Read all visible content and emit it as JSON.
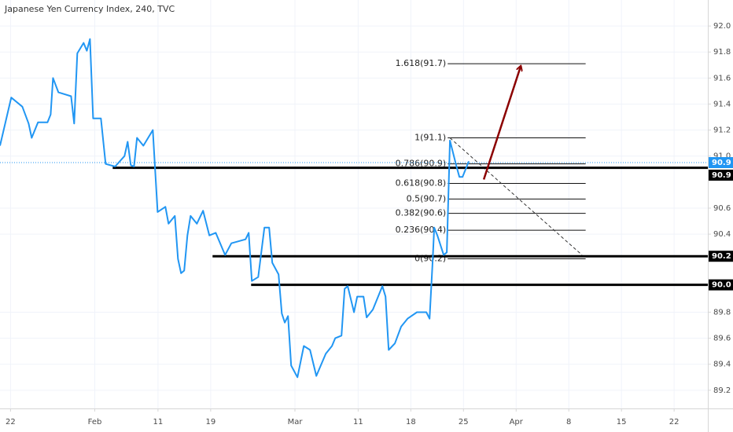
{
  "chart_data": {
    "type": "line",
    "title": "Japanese Yen Currency Index, 240, TVC",
    "x": [
      -1.0,
      0.07,
      1.12,
      1.72,
      2.01,
      2.61,
      3.51,
      3.81,
      4.03,
      4.55,
      5.75,
      6.04,
      6.34,
      6.94,
      7.24,
      7.54,
      7.84,
      8.58,
      9.03,
      9.93,
      10.82,
      11.12,
      11.42,
      11.72,
      12.01,
      12.61,
      13.51,
      13.96,
      14.7,
      15.0,
      15.6,
      15.9,
      16.19,
      16.49,
      16.79,
      17.09,
      17.69,
      18.28,
      18.88,
      19.48,
      20.37,
      20.97,
      22.31,
      22.61,
      22.91,
      23.51,
      24.1,
      24.55,
      24.85,
      25.45,
      25.75,
      26.04,
      26.34,
      26.64,
      27.24,
      27.84,
      28.43,
      29.03,
      29.93,
      30.52,
      30.82,
      31.42,
      31.72,
      32.01,
      32.61,
      32.91,
      33.51,
      33.81,
      34.4,
      35.3,
      35.6,
      35.9,
      36.49,
      37.09,
      37.69,
      38.58,
      39.48,
      39.78,
      40.07,
      40.22,
      40.52,
      41.12,
      41.42,
      41.72,
      42.31,
      42.61,
      42.91,
      43.51
    ],
    "series": [
      {
        "color": "#2196f3",
        "values": [
          91.08,
          91.45,
          91.38,
          91.25,
          91.14,
          91.26,
          91.26,
          91.32,
          91.6,
          91.49,
          91.46,
          91.25,
          91.79,
          91.87,
          91.81,
          91.9,
          91.29,
          91.29,
          90.94,
          90.92,
          91.0,
          91.11,
          90.93,
          90.92,
          91.14,
          91.08,
          91.2,
          90.57,
          90.61,
          90.48,
          90.54,
          90.21,
          90.1,
          90.12,
          90.39,
          90.54,
          90.48,
          90.58,
          90.39,
          90.41,
          90.24,
          90.33,
          90.36,
          90.41,
          90.04,
          90.07,
          90.45,
          90.45,
          90.18,
          90.09,
          89.79,
          89.72,
          89.77,
          89.39,
          89.3,
          89.54,
          89.51,
          89.31,
          89.48,
          89.54,
          89.6,
          89.62,
          89.98,
          90.0,
          89.8,
          89.92,
          89.92,
          89.76,
          89.82,
          90.0,
          89.92,
          89.51,
          89.56,
          89.69,
          89.75,
          89.8,
          89.8,
          89.75,
          90.18,
          90.45,
          90.39,
          90.24,
          90.26,
          91.12,
          90.93,
          90.84,
          90.84,
          90.96
        ]
      }
    ],
    "xlim": [
      -1,
      66.2
    ],
    "xticks": [
      {
        "value": 0,
        "label": "22"
      },
      {
        "value": 8,
        "label": "Feb"
      },
      {
        "value": 14,
        "label": "11"
      },
      {
        "value": 19,
        "label": "19"
      },
      {
        "value": 27,
        "label": "Mar"
      },
      {
        "value": 33,
        "label": "11"
      },
      {
        "value": 38,
        "label": "18"
      },
      {
        "value": 43,
        "label": "25"
      },
      {
        "value": 48,
        "label": "Apr"
      },
      {
        "value": 53,
        "label": "8"
      },
      {
        "value": 58,
        "label": "15"
      },
      {
        "value": 63,
        "label": "22"
      }
    ],
    "ylim": [
      89.06,
      92.2
    ],
    "yticks": [
      89.2,
      89.4,
      89.6,
      89.8,
      90.4,
      90.6,
      {
        "value": 91,
        "label": "91.0"
      },
      91.2,
      91.4,
      91.6,
      91.8,
      {
        "value": 92,
        "label": "92.0"
      }
    ],
    "grid": true,
    "last_price": {
      "value": 90.95,
      "label": "90.9",
      "color": "#2196f3"
    },
    "hlines": [
      {
        "value": 90.91,
        "label": "90.9",
        "x_start": 9.7
      },
      {
        "value": 90.23,
        "label": "90.2",
        "x_start": 19.18
      },
      {
        "value": 90.01,
        "label": "90.0",
        "x_start": 22.84
      }
    ],
    "fib": {
      "x_range": [
        41.5,
        54.6
      ],
      "levels": [
        {
          "label": "1.618(91.7)",
          "value": 91.71
        },
        {
          "label": "1(91.1)",
          "value": 91.14
        },
        {
          "label": "0.786(90.9)",
          "value": 90.94
        },
        {
          "label": "0.618(90.8)",
          "value": 90.79
        },
        {
          "label": "0.5(90.7)",
          "value": 90.67
        },
        {
          "label": "0.382(90.6)",
          "value": 90.56
        },
        {
          "label": "0.236(90.4)",
          "value": 90.43
        },
        {
          "label": "0(90.2)",
          "value": 90.21
        }
      ]
    },
    "trendline": {
      "x": [
        41.72,
        54.25
      ],
      "y": [
        91.14,
        90.24
      ]
    },
    "arrow": {
      "x": [
        44.93,
        48.43
      ],
      "y": [
        90.82,
        91.69
      ],
      "color": "#8b0000"
    }
  }
}
